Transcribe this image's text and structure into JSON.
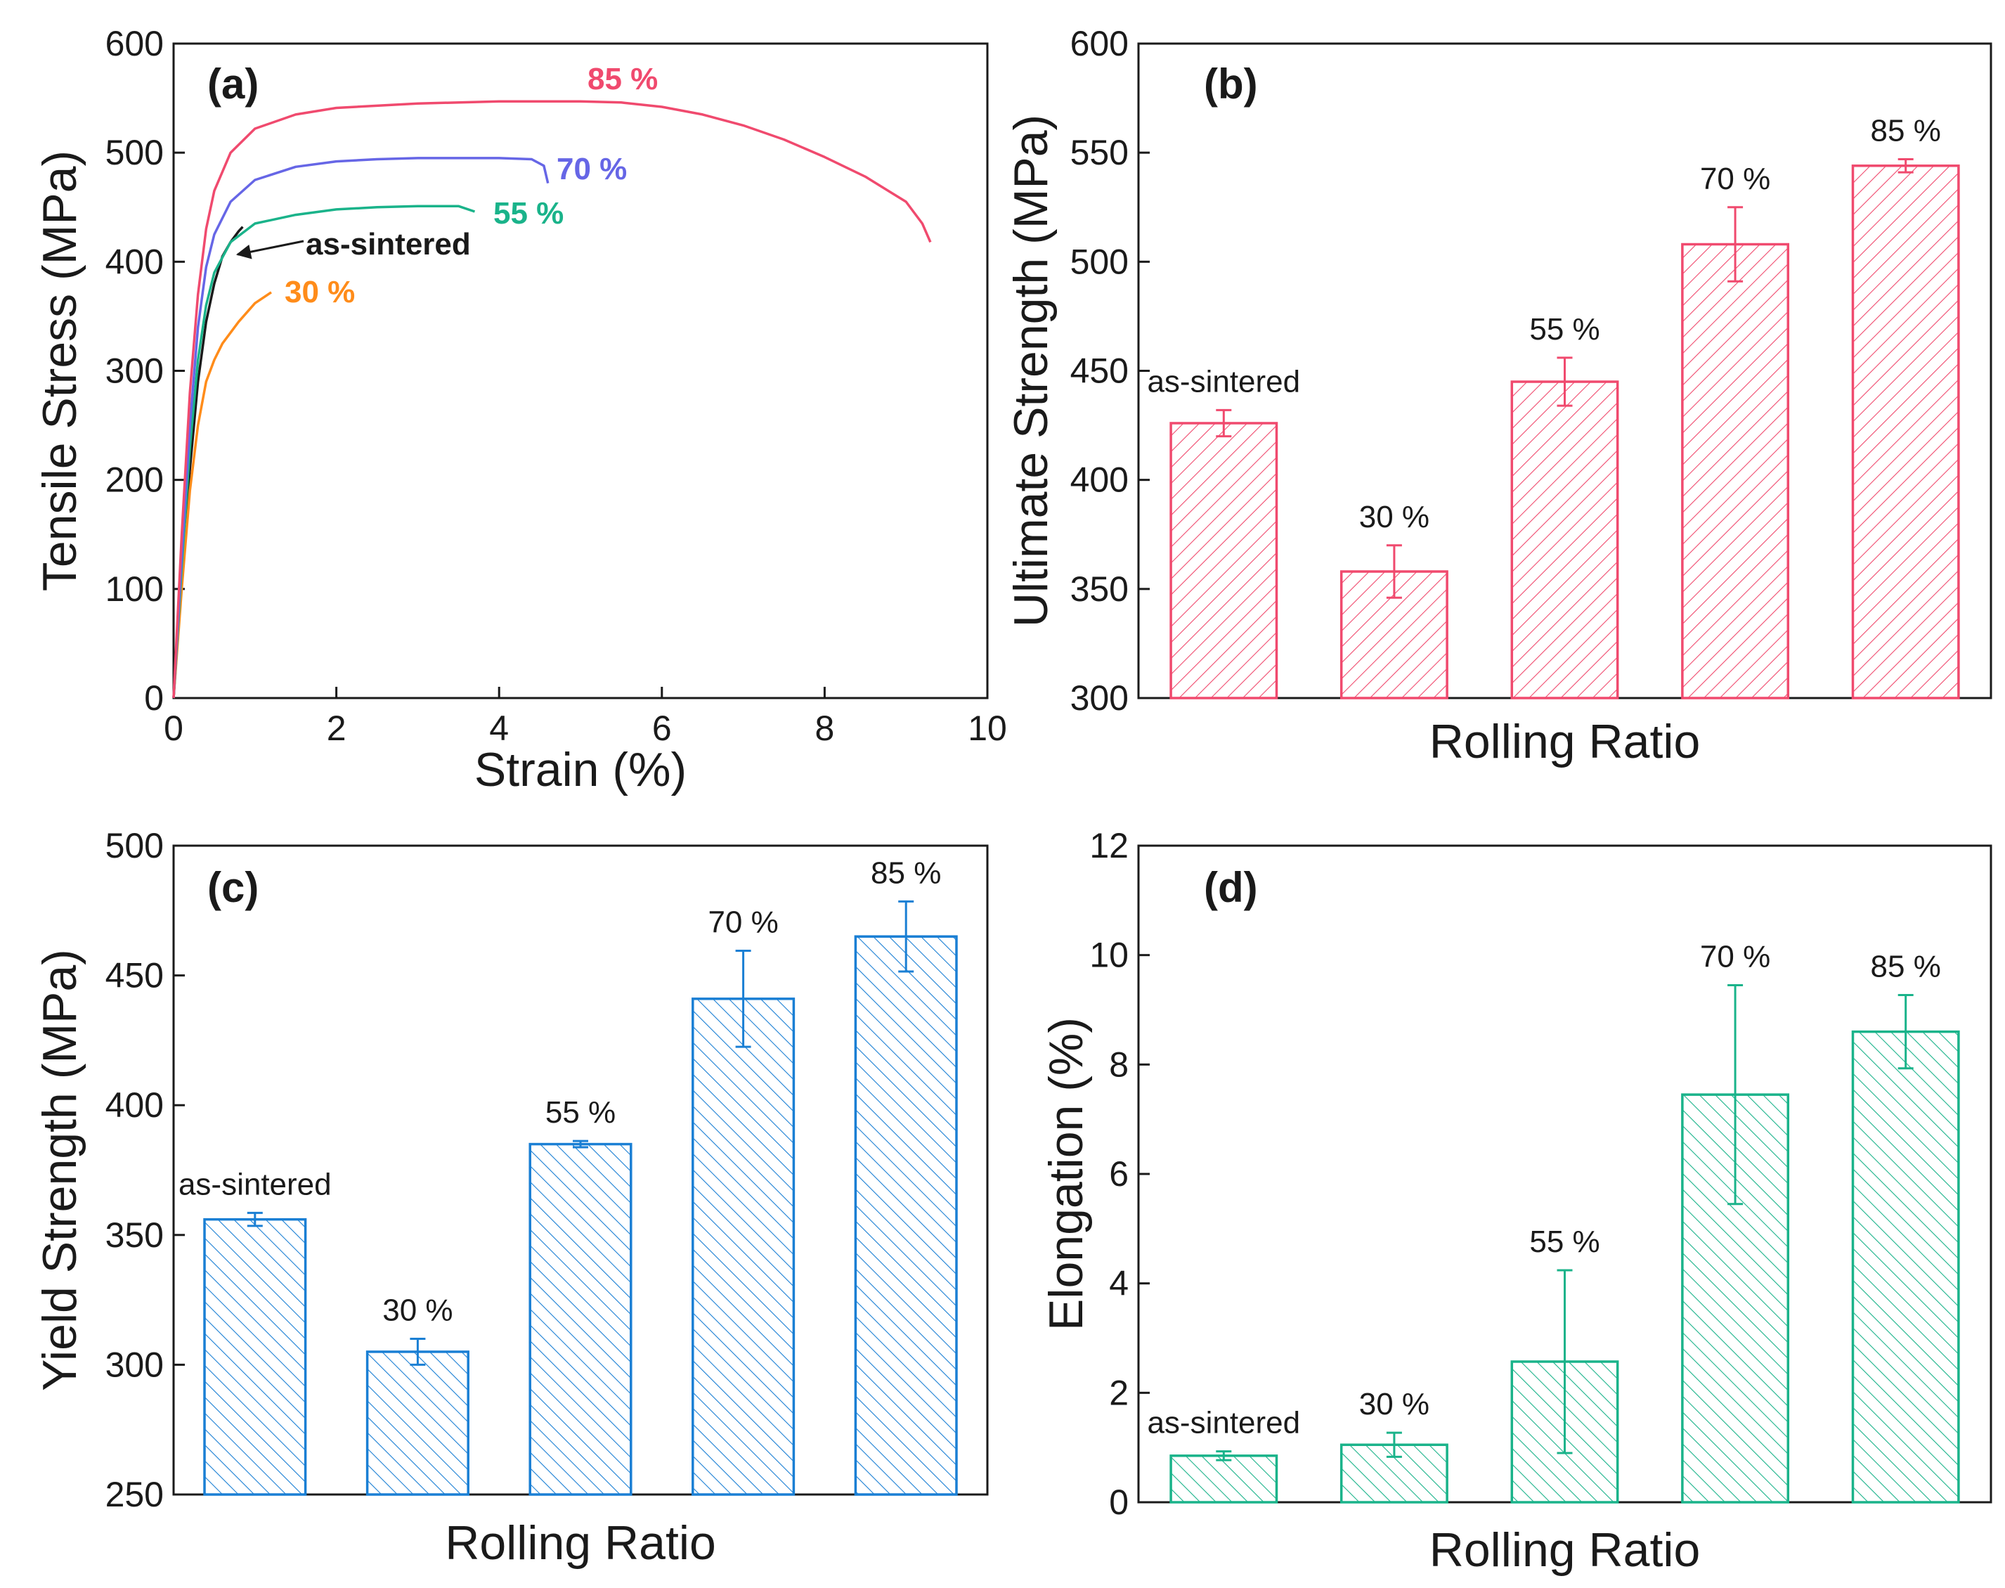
{
  "chart_data": [
    {
      "type": "line",
      "panel_label": "(a)",
      "title": "",
      "xlabel": "Strain (%)",
      "ylabel": "Tensile Stress (MPa)",
      "xlim": [
        0,
        10
      ],
      "ylim": [
        0,
        600
      ],
      "xticks": [
        "0",
        "2",
        "4",
        "6",
        "8",
        "10"
      ],
      "yticks": [
        "0",
        "100",
        "200",
        "300",
        "400",
        "500",
        "600"
      ],
      "series": [
        {
          "name": "as-sintered",
          "label": "as-sintered",
          "color": "#1a1a1a",
          "x": [
            0,
            0.1,
            0.2,
            0.3,
            0.4,
            0.5,
            0.6,
            0.7,
            0.8,
            0.85
          ],
          "y": [
            0,
            110,
            210,
            290,
            345,
            380,
            405,
            418,
            428,
            432
          ]
        },
        {
          "name": "30 %",
          "label": "30 %",
          "color": "#ff8c1a",
          "x": [
            0,
            0.1,
            0.2,
            0.3,
            0.4,
            0.5,
            0.6,
            0.8,
            1.0,
            1.2
          ],
          "y": [
            0,
            100,
            190,
            250,
            290,
            310,
            325,
            345,
            362,
            372
          ]
        },
        {
          "name": "55 %",
          "label": "55 %",
          "color": "#1ab38a",
          "x": [
            0,
            0.1,
            0.2,
            0.3,
            0.4,
            0.5,
            0.7,
            1.0,
            1.5,
            2.0,
            2.5,
            3.0,
            3.5,
            3.7
          ],
          "y": [
            0,
            120,
            230,
            310,
            360,
            390,
            418,
            435,
            443,
            448,
            450,
            451,
            451,
            446
          ]
        },
        {
          "name": "70 %",
          "label": "70 %",
          "color": "#6666e6",
          "x": [
            0,
            0.1,
            0.2,
            0.3,
            0.4,
            0.5,
            0.7,
            1.0,
            1.5,
            2.0,
            2.5,
            3.0,
            3.5,
            4.0,
            4.4,
            4.55,
            4.6
          ],
          "y": [
            0,
            130,
            250,
            340,
            395,
            425,
            455,
            475,
            487,
            492,
            494,
            495,
            495,
            495,
            494,
            488,
            472
          ]
        },
        {
          "name": "85 %",
          "label": "85 %",
          "color": "#f04a6e",
          "x": [
            0,
            0.1,
            0.2,
            0.3,
            0.4,
            0.5,
            0.7,
            1.0,
            1.5,
            2.0,
            3.0,
            4.0,
            5.0,
            5.5,
            6.0,
            6.5,
            7.0,
            7.5,
            8.0,
            8.5,
            9.0,
            9.2,
            9.3
          ],
          "y": [
            0,
            150,
            280,
            370,
            430,
            465,
            500,
            522,
            535,
            541,
            545,
            547,
            547,
            546,
            542,
            535,
            525,
            512,
            496,
            478,
            455,
            435,
            418
          ]
        }
      ]
    },
    {
      "type": "bar",
      "panel_label": "(b)",
      "title": "",
      "xlabel": "Rolling Ratio",
      "ylabel": "Ultimate Strength (MPa)",
      "ylim": [
        300,
        600
      ],
      "yticks": [
        "300",
        "350",
        "400",
        "450",
        "500",
        "550",
        "600"
      ],
      "color": "#f04a6e",
      "categories": [
        "as-sintered",
        "30 %",
        "55 %",
        "70 %",
        "85 %"
      ],
      "values": [
        426,
        358,
        445,
        508,
        544
      ],
      "errors": [
        6,
        12,
        11,
        17,
        3
      ]
    },
    {
      "type": "bar",
      "panel_label": "(c)",
      "title": "",
      "xlabel": "Rolling Ratio",
      "ylabel": "Yield Strength (MPa)",
      "ylim": [
        250,
        500
      ],
      "yticks": [
        "250",
        "300",
        "350",
        "400",
        "450",
        "500"
      ],
      "color": "#1a7fd4",
      "categories": [
        "as-sintered",
        "30 %",
        "55 %",
        "70 %",
        "85 %"
      ],
      "values": [
        356,
        305,
        385,
        441,
        465
      ],
      "errors": [
        2.5,
        5,
        1.2,
        18.5,
        13.5
      ]
    },
    {
      "type": "bar",
      "panel_label": "(d)",
      "title": "",
      "xlabel": "Rolling Ratio",
      "ylabel": "Elongation (%)",
      "ylim": [
        0,
        12
      ],
      "yticks": [
        "0",
        "2",
        "4",
        "6",
        "8",
        "10",
        "12"
      ],
      "color": "#1ab38a",
      "categories": [
        "as-sintered",
        "30 %",
        "55 %",
        "70 %",
        "85 %"
      ],
      "values": [
        0.85,
        1.05,
        2.57,
        7.45,
        8.6
      ],
      "errors": [
        0.08,
        0.22,
        1.67,
        2.0,
        0.67
      ]
    }
  ]
}
